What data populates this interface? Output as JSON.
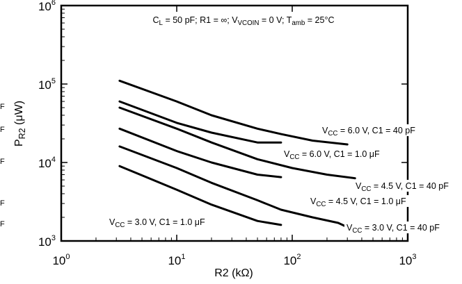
{
  "chart_data": {
    "type": "line",
    "title": "",
    "annotation": {
      "parts": [
        "C",
        "L",
        " = 50 pF; R1 = ∞; V",
        "VCOIN",
        " = 0 V; T",
        "amb",
        " = 25°C"
      ]
    },
    "xlabel": "R2 (kΩ)",
    "ylabel": {
      "parts": [
        "P",
        "R2",
        " (μW)"
      ]
    },
    "x_scale": "log",
    "y_scale": "log",
    "xlim": [
      1,
      1000
    ],
    "ylim": [
      1000,
      1000000
    ],
    "x_ticks": [
      {
        "value": 1,
        "base": "10",
        "exp": "0"
      },
      {
        "value": 10,
        "base": "10",
        "exp": "1"
      },
      {
        "value": 100,
        "base": "10",
        "exp": "2"
      },
      {
        "value": 1000,
        "base": "10",
        "exp": "3"
      }
    ],
    "y_ticks": [
      {
        "value": 1000,
        "base": "10",
        "exp": "3"
      },
      {
        "value": 10000,
        "base": "10",
        "exp": "4"
      },
      {
        "value": 100000,
        "base": "10",
        "exp": "5"
      },
      {
        "value": 1000000,
        "base": "10",
        "exp": "6"
      }
    ],
    "grid": false,
    "legend": "none",
    "series": [
      {
        "label": {
          "parts": [
            "V",
            "CC",
            " = 6.0 V, C1 = 40 pF"
          ]
        },
        "x": [
          3.2,
          10,
          20,
          50,
          80,
          150,
          300
        ],
        "y": [
          110000,
          60000,
          40000,
          27000,
          23000,
          19000,
          17000
        ]
      },
      {
        "label": {
          "parts": [
            "V",
            "CC",
            " = 6.0 V, C1 = 1.0 μF"
          ]
        },
        "x": [
          3.2,
          10,
          20,
          50,
          80
        ],
        "y": [
          60000,
          32000,
          24000,
          18000,
          18000
        ]
      },
      {
        "label": {
          "parts": [
            "V",
            "CC",
            " = 4.5 V, C1 = 40 pF"
          ]
        },
        "x": [
          3.2,
          10,
          20,
          50,
          100,
          200,
          350
        ],
        "y": [
          50000,
          27000,
          18000,
          11000,
          8500,
          7000,
          6300
        ]
      },
      {
        "label": {
          "parts": [
            "V",
            "CC",
            " = 4.5 V, C1 = 1.0 μF"
          ]
        },
        "x": [
          3.2,
          10,
          20,
          50,
          80
        ],
        "y": [
          27000,
          14000,
          10000,
          7000,
          6500
        ]
      },
      {
        "label": {
          "parts": [
            "V",
            "CC",
            " = 3.0 V, C1 = 40 pF"
          ]
        },
        "x": [
          3.2,
          10,
          20,
          50,
          80,
          150,
          250,
          300
        ],
        "y": [
          16000,
          8500,
          5500,
          3300,
          2500,
          2000,
          1700,
          1500
        ]
      },
      {
        "label": {
          "parts": [
            "V",
            "CC",
            " = 3.0 V, C1 = 1.0 μF"
          ]
        },
        "x": [
          3.2,
          10,
          20,
          50,
          80
        ],
        "y": [
          9000,
          4500,
          2900,
          1800,
          1600
        ]
      }
    ],
    "left_edge_fragments": [
      "F",
      "F",
      "F",
      "F",
      "F"
    ],
    "colors": {
      "line": "#000000",
      "background": "#ffffff"
    }
  }
}
